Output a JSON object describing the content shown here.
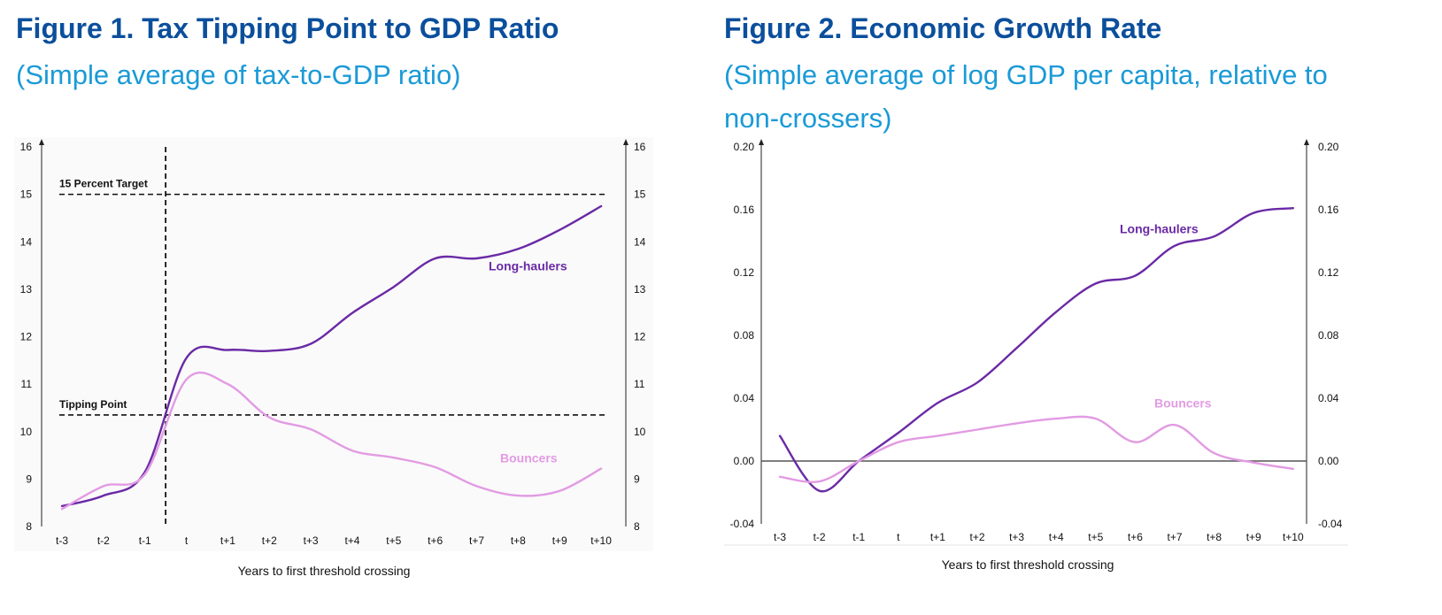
{
  "colors": {
    "title": "#0b4f9c",
    "subtitle": "#1a9ad6",
    "long_haulers": "#6a2aa5",
    "bouncers": "#e29be3",
    "axis": "#222222",
    "zero_line": "#555555"
  },
  "chart_data": [
    {
      "type": "line",
      "title": "Figure 1. Tax Tipping Point to GDP Ratio",
      "subtitle": "(Simple average of tax-to-GDP ratio)",
      "xlabel": "Years to first threshold crossing",
      "ylabel": "",
      "categories": [
        "t-3",
        "t-2",
        "t-1",
        "t",
        "t+1",
        "t+2",
        "t+3",
        "t+4",
        "t+5",
        "t+6",
        "t+7",
        "t+8",
        "t+9",
        "t+10"
      ],
      "ylim": [
        8,
        16
      ],
      "yticks": [
        "8",
        "9",
        "10",
        "11",
        "12",
        "13",
        "14",
        "15",
        "16"
      ],
      "grid": false,
      "series": [
        {
          "name": "Long-haulers",
          "label": "Long-haulers",
          "values": [
            8.43,
            8.65,
            9.15,
            11.55,
            11.72,
            11.7,
            11.85,
            12.5,
            13.05,
            13.65,
            13.65,
            13.85,
            14.25,
            14.75
          ]
        },
        {
          "name": "Bouncers",
          "label": "Bouncers",
          "values": [
            8.37,
            8.85,
            9.1,
            11.1,
            11.0,
            10.3,
            10.05,
            9.6,
            9.45,
            9.25,
            8.85,
            8.65,
            8.75,
            9.22
          ]
        }
      ],
      "annotations": [
        {
          "label": "15 Percent Target",
          "type": "hline",
          "y": 15
        },
        {
          "label": "Tipping Point",
          "type": "hline",
          "y": 10.35
        },
        {
          "label": "",
          "type": "vline",
          "x": 2.5
        }
      ]
    },
    {
      "type": "line",
      "title": "Figure 2. Economic Growth Rate",
      "subtitle": "(Simple average of log GDP per capita, relative to non-crossers)",
      "xlabel": "Years to first threshold crossing",
      "ylabel": "",
      "categories": [
        "t-3",
        "t-2",
        "t-1",
        "t",
        "t+1",
        "t+2",
        "t+3",
        "t+4",
        "t+5",
        "t+6",
        "t+7",
        "t+8",
        "t+9",
        "t+10"
      ],
      "ylim": [
        -0.04,
        0.2
      ],
      "yticks": [
        "-0.04",
        "0.00",
        "0.04",
        "0.08",
        "0.12",
        "0.16",
        "0.20"
      ],
      "grid": false,
      "series": [
        {
          "name": "Long-haulers",
          "label": "Long-haulers",
          "values": [
            0.016,
            -0.019,
            0.0,
            0.018,
            0.037,
            0.05,
            0.072,
            0.095,
            0.113,
            0.118,
            0.137,
            0.143,
            0.158,
            0.161
          ]
        },
        {
          "name": "Bouncers",
          "label": "Bouncers",
          "values": [
            -0.01,
            -0.013,
            0.0,
            0.012,
            0.016,
            0.02,
            0.024,
            0.027,
            0.027,
            0.012,
            0.023,
            0.005,
            -0.001,
            -0.005
          ]
        }
      ],
      "annotations": [
        {
          "label": "",
          "type": "hline",
          "y": 0
        }
      ]
    }
  ]
}
